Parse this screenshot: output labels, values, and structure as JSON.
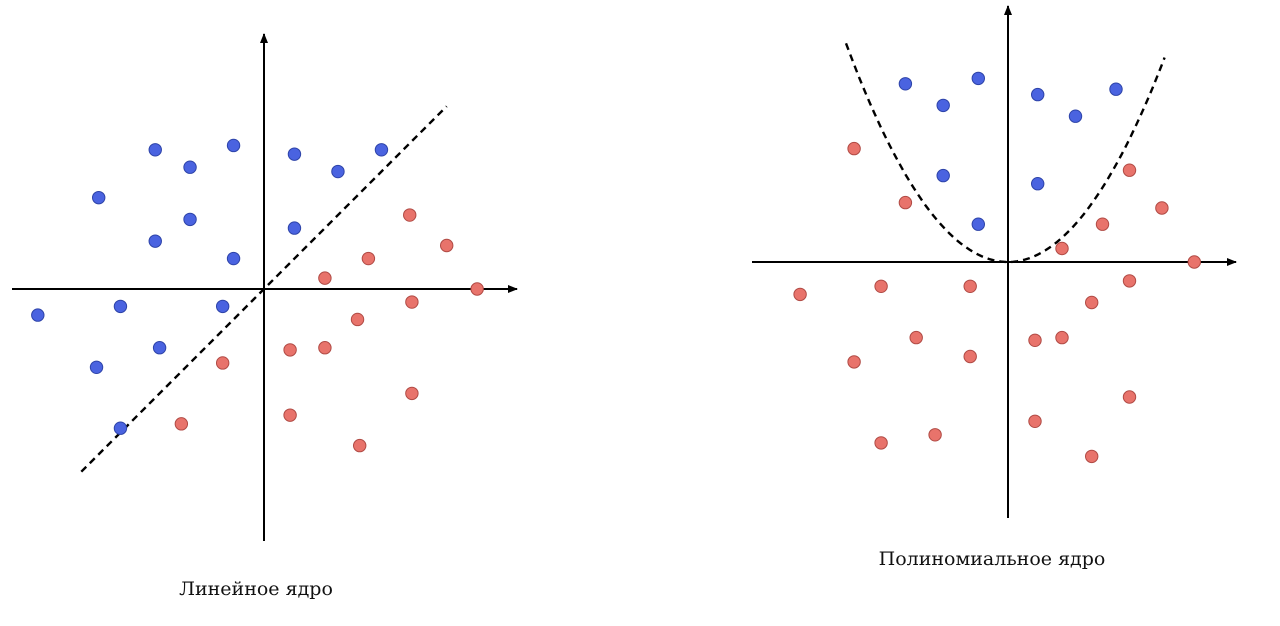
{
  "colors": {
    "class_a": "#4a63e0",
    "class_a_stroke": "#2d43a8",
    "class_b": "#e8736b",
    "class_b_stroke": "#b04a44",
    "axis": "#000000",
    "boundary": "#000000"
  },
  "panels": [
    {
      "id": "linear",
      "caption": "Линейное ядро",
      "boundary": {
        "type": "line",
        "slope": 1
      },
      "points_a": [
        [
          -2.5,
          3.2
        ],
        [
          -1.7,
          2.8
        ],
        [
          -0.7,
          3.3
        ],
        [
          0.7,
          3.1
        ],
        [
          1.7,
          2.7
        ],
        [
          2.7,
          3.2
        ],
        [
          -3.8,
          2.1
        ],
        [
          -1.7,
          1.6
        ],
        [
          -2.5,
          1.1
        ],
        [
          -0.7,
          0.7
        ],
        [
          0.7,
          1.4
        ],
        [
          -5.2,
          -0.6
        ],
        [
          -3.3,
          -0.4
        ],
        [
          -0.95,
          -0.4
        ],
        [
          -2.4,
          -1.35
        ],
        [
          -3.85,
          -1.8
        ],
        [
          -3.3,
          -3.2
        ]
      ],
      "points_b": [
        [
          3.35,
          1.7
        ],
        [
          4.2,
          1.0
        ],
        [
          2.4,
          0.7
        ],
        [
          1.4,
          0.25
        ],
        [
          4.9,
          0.0
        ],
        [
          3.4,
          -0.3
        ],
        [
          2.15,
          -0.7
        ],
        [
          -0.95,
          -1.7
        ],
        [
          0.6,
          -1.4
        ],
        [
          1.4,
          -1.35
        ],
        [
          3.4,
          -2.4
        ],
        [
          -1.9,
          -3.1
        ],
        [
          0.6,
          -2.9
        ],
        [
          2.2,
          -3.6
        ]
      ]
    },
    {
      "id": "polynomial",
      "caption": "Полиномиальное ядро",
      "boundary": {
        "type": "parabola",
        "coef": 0.45
      },
      "points_a": [
        [
          -1.9,
          3.3
        ],
        [
          -1.2,
          2.9
        ],
        [
          -0.55,
          3.4
        ],
        [
          0.55,
          3.1
        ],
        [
          1.25,
          2.7
        ],
        [
          2.0,
          3.2
        ],
        [
          -1.2,
          1.6
        ],
        [
          0.55,
          1.45
        ],
        [
          -0.55,
          0.7
        ]
      ],
      "points_b": [
        [
          -2.85,
          2.1
        ],
        [
          -1.9,
          1.1
        ],
        [
          2.25,
          1.7
        ],
        [
          2.85,
          1.0
        ],
        [
          1.75,
          0.7
        ],
        [
          1.0,
          0.25
        ],
        [
          3.45,
          0.0
        ],
        [
          -3.85,
          -0.6
        ],
        [
          -2.35,
          -0.45
        ],
        [
          -0.7,
          -0.45
        ],
        [
          2.25,
          -0.35
        ],
        [
          1.55,
          -0.75
        ],
        [
          -1.7,
          -1.4
        ],
        [
          0.5,
          -1.45
        ],
        [
          1.0,
          -1.4
        ],
        [
          -2.85,
          -1.85
        ],
        [
          -0.7,
          -1.75
        ],
        [
          2.25,
          -2.5
        ],
        [
          0.5,
          -2.95
        ],
        [
          -2.35,
          -3.35
        ],
        [
          -1.35,
          -3.2
        ],
        [
          1.55,
          -3.6
        ]
      ]
    }
  ]
}
